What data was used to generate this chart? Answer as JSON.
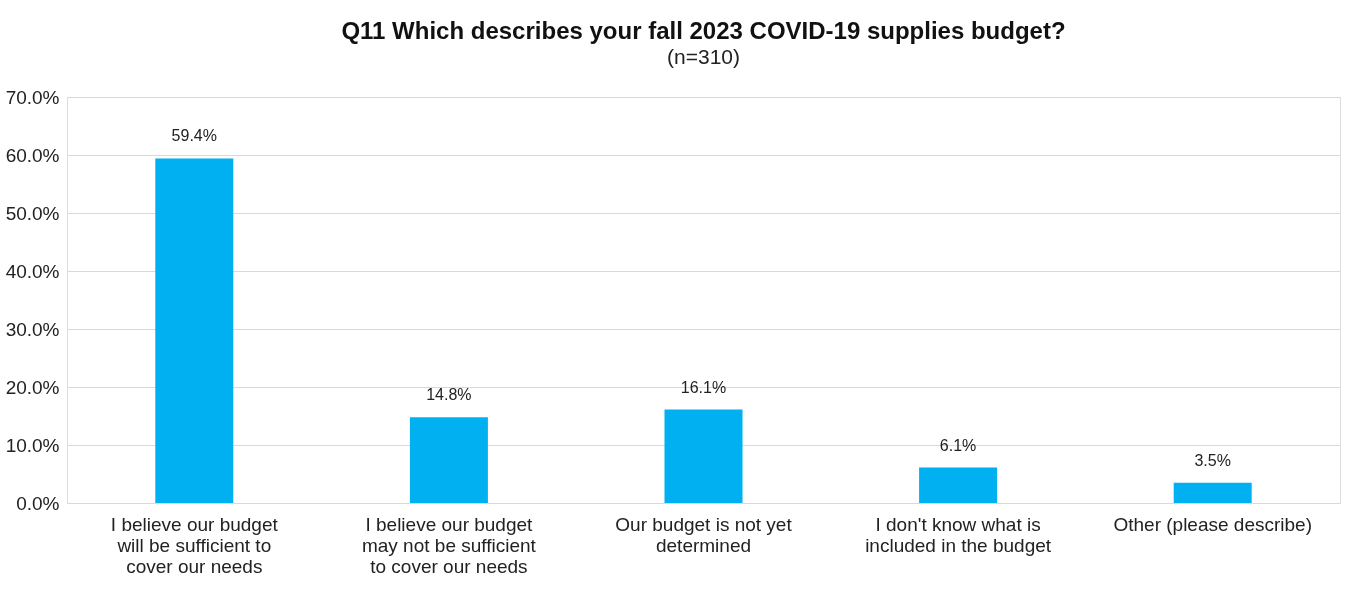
{
  "chart_data": {
    "type": "bar",
    "title": "Q11 Which describes your fall 2023 COVID-19 supplies budget?",
    "subtitle": "(n=310)",
    "categories": [
      "I believe our budget will be sufficient to cover our needs",
      "I believe our budget may not be sufficient to cover our needs",
      "Our budget is not yet determined",
      "I don't know what is included in the budget",
      "Other (please describe)"
    ],
    "values": [
      59.4,
      14.8,
      16.1,
      6.1,
      3.5
    ],
    "value_labels": [
      "59.4%",
      "14.8%",
      "16.1%",
      "6.1%",
      "3.5%"
    ],
    "color": "#00b0f0",
    "ylim": [
      0,
      70
    ],
    "yticks": [
      {
        "value": 0,
        "label": "0.0%"
      },
      {
        "value": 10,
        "label": "10.0%"
      },
      {
        "value": 20,
        "label": "20.0%"
      },
      {
        "value": 30,
        "label": "30.0%"
      },
      {
        "value": 40,
        "label": "40.0%"
      },
      {
        "value": 50,
        "label": "50.0%"
      },
      {
        "value": 60,
        "label": "60.0%"
      },
      {
        "value": 70,
        "label": "70.0%"
      }
    ],
    "grid": "y"
  }
}
